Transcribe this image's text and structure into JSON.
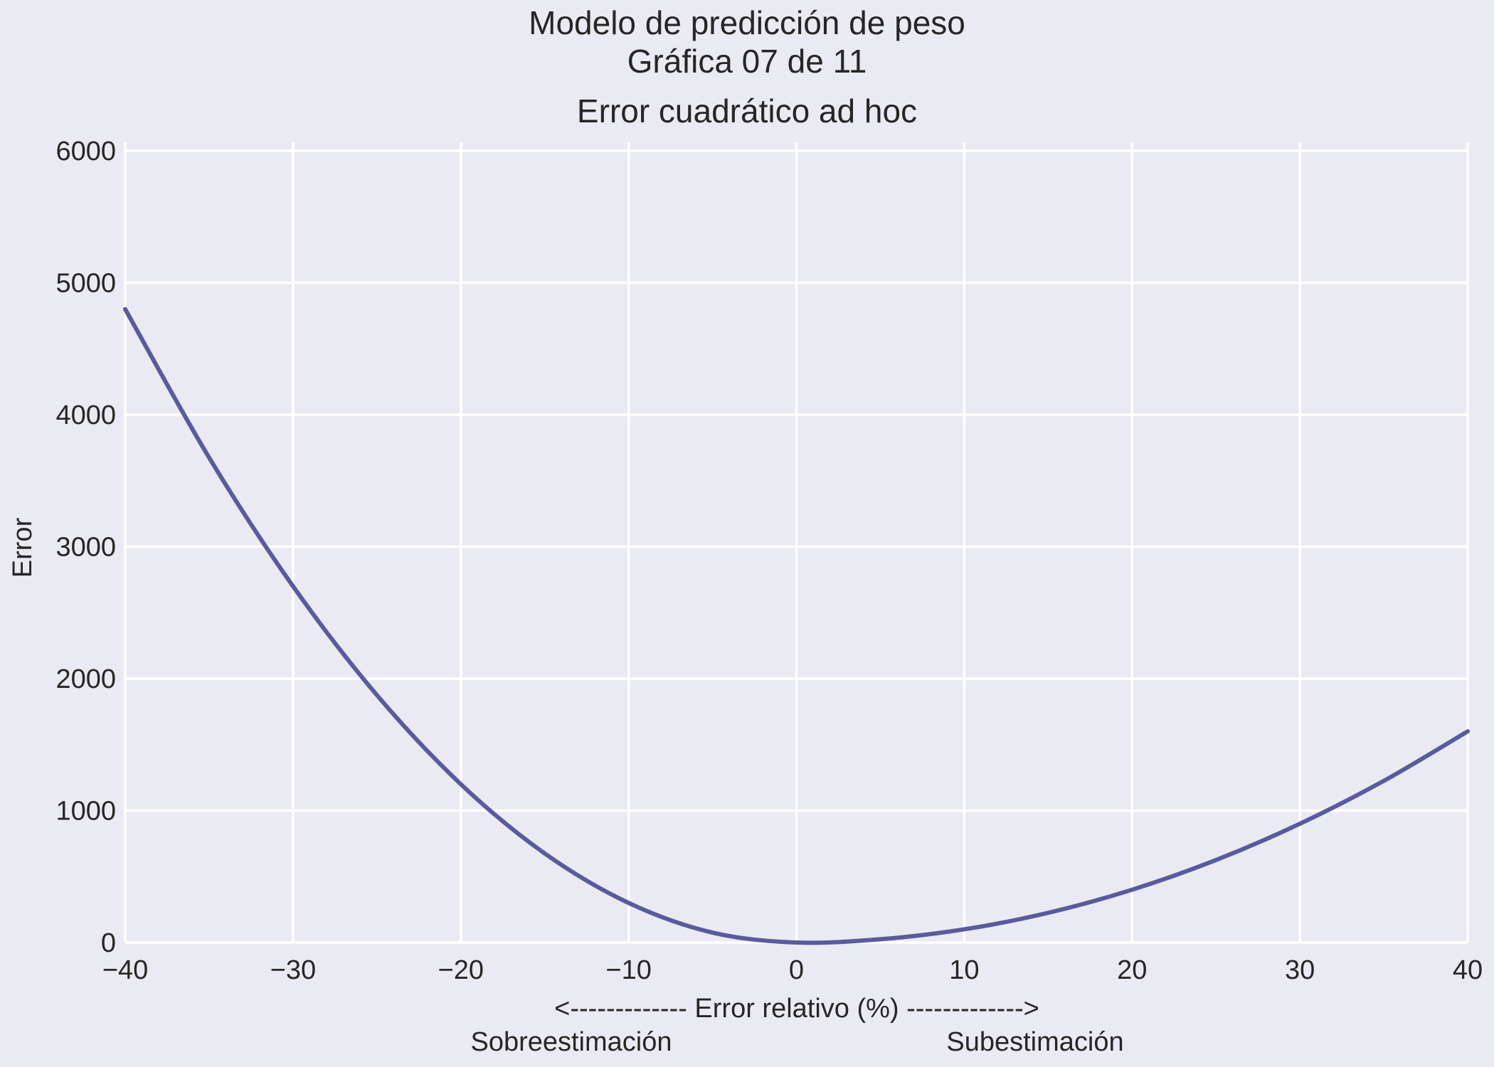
{
  "figure": {
    "suptitle_line1": "Modelo de predicción de peso",
    "suptitle_line2": "Gráfica 07 de 11"
  },
  "chart_data": {
    "type": "line",
    "title": "Error cuadrático ad hoc",
    "xlabel": "<------------- Error relativo (%) ------------->",
    "xlabel_left": "Sobreestimación",
    "xlabel_right": "Subestimación",
    "ylabel": "Error",
    "xlim": [
      -40,
      40
    ],
    "ylim": [
      0,
      6000
    ],
    "xticks": [
      -40,
      -30,
      -20,
      -10,
      0,
      10,
      20,
      30,
      40
    ],
    "xtick_labels": [
      "−40",
      "−30",
      "−20",
      "−10",
      "0",
      "10",
      "20",
      "30",
      "40"
    ],
    "yticks": [
      0,
      1000,
      2000,
      3000,
      4000,
      5000,
      6000
    ],
    "ytick_labels": [
      "0",
      "1000",
      "2000",
      "3000",
      "4000",
      "5000",
      "6000"
    ],
    "grid": true,
    "series": [
      {
        "color": "#5a5a9e",
        "x": [
          -40,
          -35,
          -30,
          -25,
          -20,
          -15,
          -10,
          -5,
          0,
          5,
          10,
          15,
          20,
          25,
          30,
          35,
          40
        ],
        "y": [
          4800,
          3675,
          2700,
          1875,
          1200,
          675,
          300,
          75,
          0,
          25,
          100,
          225,
          400,
          625,
          900,
          1225,
          1600
        ]
      }
    ]
  }
}
